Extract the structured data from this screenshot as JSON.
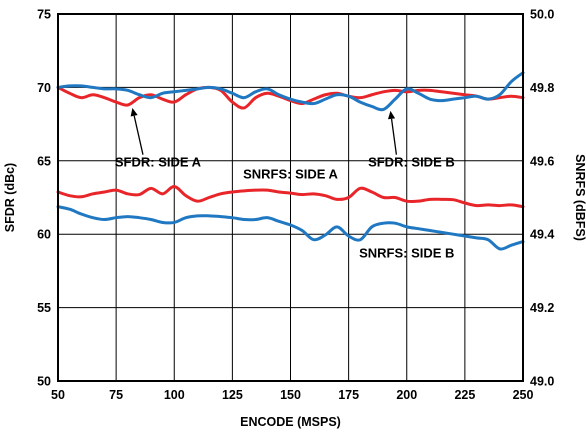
{
  "chart_data": {
    "type": "line",
    "xlabel": "ENCODE (MSPS)",
    "ylabel_left": "SFDR (dBc)",
    "ylabel_right": "SNRFS (dBFS)",
    "xlim": [
      50,
      250
    ],
    "ylim_left": [
      50,
      75
    ],
    "ylim_right": [
      49.0,
      50.0
    ],
    "x_ticks": [
      "50",
      "75",
      "100",
      "125",
      "150",
      "175",
      "200",
      "225",
      "250"
    ],
    "y_ticks_left": [
      "50",
      "55",
      "60",
      "65",
      "70",
      "75"
    ],
    "y_ticks_right": [
      "49.0",
      "49.2",
      "49.4",
      "49.6",
      "49.8",
      "50.0"
    ],
    "grid": true,
    "colors": {
      "side_a": "#e8262a",
      "side_b": "#1f78c1"
    },
    "series": [
      {
        "name": "SFDR: SIDE A",
        "axis": "left",
        "color": "#e8262a",
        "x": [
          50,
          55,
          60,
          65,
          70,
          75,
          80,
          85,
          90,
          95,
          100,
          105,
          110,
          115,
          120,
          125,
          130,
          135,
          140,
          145,
          150,
          155,
          160,
          165,
          170,
          175,
          180,
          185,
          190,
          195,
          200,
          205,
          210,
          215,
          220,
          225,
          230,
          235,
          240,
          245,
          250
        ],
        "values": [
          70.0,
          69.6,
          69.3,
          69.5,
          69.3,
          69.0,
          68.8,
          69.3,
          69.5,
          69.2,
          69.0,
          69.5,
          69.9,
          70.0,
          69.8,
          69.0,
          68.6,
          69.3,
          69.6,
          69.4,
          69.1,
          68.9,
          69.2,
          69.5,
          69.6,
          69.4,
          69.3,
          69.5,
          69.7,
          69.8,
          69.7,
          69.8,
          69.8,
          69.7,
          69.6,
          69.5,
          69.4,
          69.2,
          69.3,
          69.4,
          69.3
        ]
      },
      {
        "name": "SFDR: SIDE B",
        "axis": "left",
        "color": "#1f78c1",
        "x": [
          50,
          55,
          60,
          65,
          70,
          75,
          80,
          85,
          90,
          95,
          100,
          105,
          110,
          115,
          120,
          125,
          130,
          135,
          140,
          145,
          150,
          155,
          160,
          165,
          170,
          175,
          180,
          185,
          190,
          195,
          200,
          205,
          210,
          215,
          220,
          225,
          230,
          235,
          240,
          245,
          250
        ],
        "values": [
          70.0,
          70.1,
          70.1,
          70.0,
          69.9,
          69.9,
          69.8,
          69.5,
          69.3,
          69.6,
          69.7,
          69.8,
          69.9,
          70.0,
          69.9,
          69.6,
          69.3,
          69.7,
          69.9,
          69.5,
          69.2,
          69.0,
          68.9,
          69.2,
          69.5,
          69.4,
          69.0,
          68.7,
          68.5,
          69.2,
          69.9,
          69.6,
          69.2,
          69.1,
          69.2,
          69.3,
          69.4,
          69.2,
          69.5,
          70.4,
          71.0
        ]
      },
      {
        "name": "SNRFS: SIDE A",
        "axis": "right",
        "color": "#e8262a",
        "x": [
          50,
          55,
          60,
          65,
          70,
          75,
          80,
          85,
          90,
          95,
          100,
          105,
          110,
          115,
          120,
          125,
          130,
          135,
          140,
          145,
          150,
          155,
          160,
          165,
          170,
          175,
          180,
          185,
          190,
          195,
          200,
          205,
          210,
          215,
          220,
          225,
          230,
          235,
          240,
          245,
          250
        ],
        "values": [
          49.515,
          49.505,
          49.502,
          49.51,
          49.515,
          49.52,
          49.51,
          49.508,
          49.525,
          49.51,
          49.53,
          49.505,
          49.49,
          49.5,
          49.51,
          49.515,
          49.518,
          49.52,
          49.52,
          49.515,
          49.512,
          49.508,
          49.51,
          49.505,
          49.495,
          49.5,
          49.525,
          49.515,
          49.5,
          49.5,
          49.49,
          49.49,
          49.495,
          49.495,
          49.494,
          49.485,
          49.478,
          49.48,
          49.478,
          49.48,
          49.475
        ]
      },
      {
        "name": "SNRFS: SIDE B",
        "axis": "right",
        "color": "#1f78c1",
        "x": [
          50,
          55,
          60,
          65,
          70,
          75,
          80,
          85,
          90,
          95,
          100,
          105,
          110,
          115,
          120,
          125,
          130,
          135,
          140,
          145,
          150,
          155,
          160,
          165,
          170,
          175,
          180,
          185,
          190,
          195,
          200,
          205,
          210,
          215,
          220,
          225,
          230,
          235,
          240,
          245,
          250
        ],
        "values": [
          49.475,
          49.468,
          49.455,
          49.445,
          49.44,
          49.445,
          49.448,
          49.445,
          49.44,
          49.432,
          49.432,
          49.445,
          49.45,
          49.45,
          49.448,
          49.445,
          49.44,
          49.44,
          49.445,
          49.435,
          49.425,
          49.41,
          49.385,
          49.398,
          49.42,
          49.395,
          49.385,
          49.42,
          49.43,
          49.43,
          49.42,
          49.415,
          49.41,
          49.405,
          49.4,
          49.395,
          49.39,
          49.385,
          49.36,
          49.37,
          49.38
        ]
      }
    ],
    "annotations": [
      {
        "text": "SFDR: SIDE A",
        "x": 93,
        "y": 64.6,
        "axis": "left",
        "points_to": [
          82,
          68.6
        ]
      },
      {
        "text": "SFDR: SIDE B",
        "x": 202,
        "y": 64.6,
        "axis": "left",
        "points_to": [
          193,
          68.4
        ]
      },
      {
        "text": "SNRFS: SIDE A",
        "x": 150,
        "y": 63.8,
        "axis": "left"
      },
      {
        "text": "SNRFS: SIDE B",
        "x": 200,
        "y": 58.4,
        "axis": "left"
      }
    ]
  }
}
